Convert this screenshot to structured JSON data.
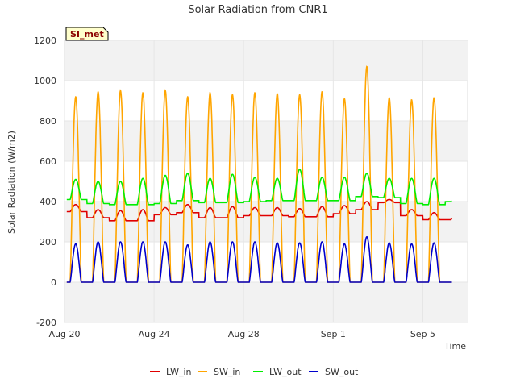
{
  "chart_data": {
    "type": "line",
    "title": "Solar Radiation from CNR1",
    "badge": "SI_met",
    "xlabel": "Time",
    "ylabel": "Solar Radiation (W/m2)",
    "xlim": [
      "2020-08-20",
      "2020-09-07"
    ],
    "ylim": [
      -200,
      1200
    ],
    "yticks": [
      -200,
      0,
      200,
      400,
      600,
      800,
      1000,
      1200
    ],
    "xticks": [
      {
        "date": "2020-08-20",
        "label": "Aug 20"
      },
      {
        "date": "2020-08-24",
        "label": "Aug 24"
      },
      {
        "date": "2020-08-28",
        "label": "Aug 28"
      },
      {
        "date": "2020-09-01",
        "label": "Sep 1"
      },
      {
        "date": "2020-09-05",
        "label": "Sep 5"
      }
    ],
    "grid": true,
    "legend_position": "bottom",
    "days": [
      "2020-08-20",
      "2020-08-21",
      "2020-08-22",
      "2020-08-23",
      "2020-08-24",
      "2020-08-25",
      "2020-08-26",
      "2020-08-27",
      "2020-08-28",
      "2020-08-29",
      "2020-08-30",
      "2020-08-31",
      "2020-09-01",
      "2020-09-02",
      "2020-09-03",
      "2020-09-04",
      "2020-09-05",
      "2020-09-06"
    ],
    "series": [
      {
        "name": "LW_in",
        "color": "#e00000",
        "kind": "lw_in",
        "night_values": [
          350,
          320,
          305,
          305,
          335,
          345,
          320,
          320,
          330,
          330,
          325,
          325,
          340,
          360,
          395,
          330,
          310,
          310
        ],
        "day_peak_values": [
          385,
          360,
          355,
          360,
          370,
          385,
          370,
          375,
          370,
          370,
          365,
          375,
          380,
          400,
          410,
          360,
          345,
          350
        ]
      },
      {
        "name": "SW_in",
        "color": "#ffa500",
        "kind": "sw",
        "daily_peak_values": [
          920,
          945,
          950,
          940,
          950,
          920,
          940,
          930,
          940,
          935,
          930,
          945,
          910,
          1070,
          915,
          905,
          915,
          0
        ]
      },
      {
        "name": "LW_out",
        "color": "#00ee00",
        "kind": "lw_out",
        "night_values": [
          410,
          390,
          385,
          385,
          390,
          405,
          395,
          395,
          400,
          405,
          405,
          405,
          405,
          425,
          420,
          390,
          385,
          400
        ],
        "day_peak_values": [
          510,
          500,
          500,
          515,
          530,
          540,
          515,
          535,
          520,
          515,
          560,
          520,
          520,
          540,
          515,
          515,
          515,
          410
        ]
      },
      {
        "name": "SW_out",
        "color": "#0000cc",
        "kind": "sw",
        "daily_peak_values": [
          190,
          200,
          200,
          200,
          200,
          185,
          200,
          200,
          200,
          195,
          195,
          200,
          190,
          225,
          195,
          190,
          195,
          0
        ]
      }
    ]
  }
}
